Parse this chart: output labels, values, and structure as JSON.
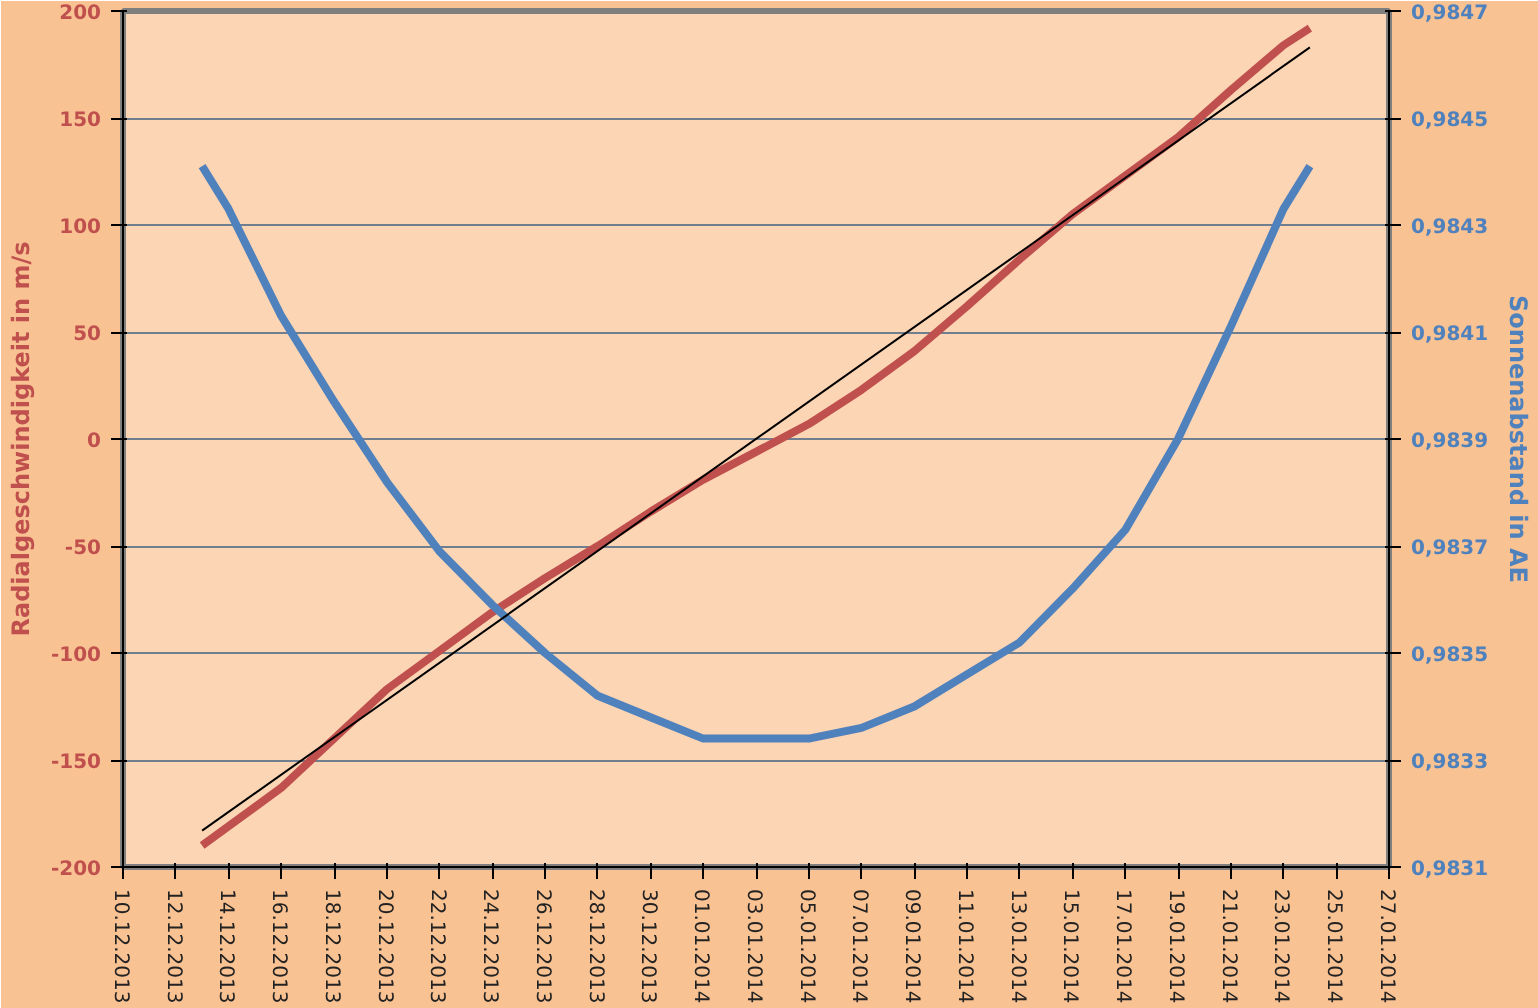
{
  "chart_data": {
    "type": "line",
    "ylabel": "Radialgeschwindigkeit in m/s",
    "y2label": "Sonnenabstand in AE",
    "xlim": [
      "2013-12-10",
      "2014-01-27"
    ],
    "xticks": [
      {
        "value": "2013-12-10",
        "label": "10.12.2013"
      },
      {
        "value": "2013-12-12",
        "label": "12.12.2013"
      },
      {
        "value": "2013-12-14",
        "label": "14.12.2013"
      },
      {
        "value": "2013-12-16",
        "label": "16.12.2013"
      },
      {
        "value": "2013-12-18",
        "label": "18.12.2013"
      },
      {
        "value": "2013-12-20",
        "label": "20.12.2013"
      },
      {
        "value": "2013-12-22",
        "label": "22.12.2013"
      },
      {
        "value": "2013-12-24",
        "label": "24.12.2013"
      },
      {
        "value": "2013-12-26",
        "label": "26.12.2013"
      },
      {
        "value": "2013-12-28",
        "label": "28.12.2013"
      },
      {
        "value": "2013-12-30",
        "label": "30.12.2013"
      },
      {
        "value": "2014-01-01",
        "label": "01.01.2014"
      },
      {
        "value": "2014-01-03",
        "label": "03.01.2014"
      },
      {
        "value": "2014-01-05",
        "label": "05.01.2014"
      },
      {
        "value": "2014-01-07",
        "label": "07.01.2014"
      },
      {
        "value": "2014-01-09",
        "label": "09.01.2014"
      },
      {
        "value": "2014-01-11",
        "label": "11.01.2014"
      },
      {
        "value": "2014-01-13",
        "label": "13.01.2014"
      },
      {
        "value": "2014-01-15",
        "label": "15.01.2014"
      },
      {
        "value": "2014-01-17",
        "label": "17.01.2014"
      },
      {
        "value": "2014-01-19",
        "label": "19.01.2014"
      },
      {
        "value": "2014-01-21",
        "label": "21.01.2014"
      },
      {
        "value": "2014-01-23",
        "label": "23.01.2014"
      },
      {
        "value": "2014-01-25",
        "label": "25.01.2014"
      },
      {
        "value": "2014-01-27",
        "label": "27.01.2014"
      }
    ],
    "ylim": [
      -200,
      200
    ],
    "yticks": [
      -200,
      -150,
      -100,
      -50,
      0,
      50,
      100,
      150,
      200
    ],
    "y2lim": [
      0.9831,
      0.9847
    ],
    "y2ticks": [
      {
        "value": 0.9831,
        "label": "0,9831"
      },
      {
        "value": 0.9833,
        "label": "0,9833"
      },
      {
        "value": 0.9835,
        "label": "0,9835"
      },
      {
        "value": 0.9837,
        "label": "0,9837"
      },
      {
        "value": 0.9839,
        "label": "0,9839"
      },
      {
        "value": 0.9841,
        "label": "0,9841"
      },
      {
        "value": 0.9843,
        "label": "0,9843"
      },
      {
        "value": 0.9845,
        "label": "0,9845"
      },
      {
        "value": 0.9847,
        "label": "0,9847"
      }
    ],
    "grid": "y",
    "marker": "none",
    "line_style": "solid",
    "x": [
      "2013-12-13",
      "2013-12-14",
      "2013-12-16",
      "2013-12-18",
      "2013-12-20",
      "2013-12-22",
      "2013-12-24",
      "2013-12-26",
      "2013-12-28",
      "2013-12-30",
      "2014-01-01",
      "2014-01-03",
      "2014-01-05",
      "2014-01-07",
      "2014-01-09",
      "2014-01-11",
      "2014-01-13",
      "2014-01-15",
      "2014-01-17",
      "2014-01-19",
      "2014-01-21",
      "2014-01-23",
      "2014-01-24"
    ],
    "series": [
      {
        "color": "#c0504d",
        "values": [
          -190,
          -181,
          -163,
          -140,
          -117,
          -99,
          -81,
          -65,
          -50,
          -34,
          -19,
          -6,
          7,
          23,
          41,
          62,
          84,
          105,
          123,
          141,
          163,
          184,
          192
        ]
      },
      {
        "color": "#4f81bd",
        "axis": "y2",
        "values": [
          0.98441,
          0.98433,
          0.98413,
          0.98397,
          0.98382,
          0.98369,
          0.98359,
          0.9835,
          0.98342,
          0.98338,
          0.98334,
          0.98334,
          0.98334,
          0.98336,
          0.9834,
          0.98346,
          0.98352,
          0.98362,
          0.98373,
          0.9839,
          0.98411,
          0.98433,
          0.98441
        ]
      },
      {
        "type": "line",
        "color": "#000000",
        "x": [
          "2013-12-13",
          "2014-01-24"
        ],
        "values": [
          -183,
          183
        ]
      }
    ]
  }
}
